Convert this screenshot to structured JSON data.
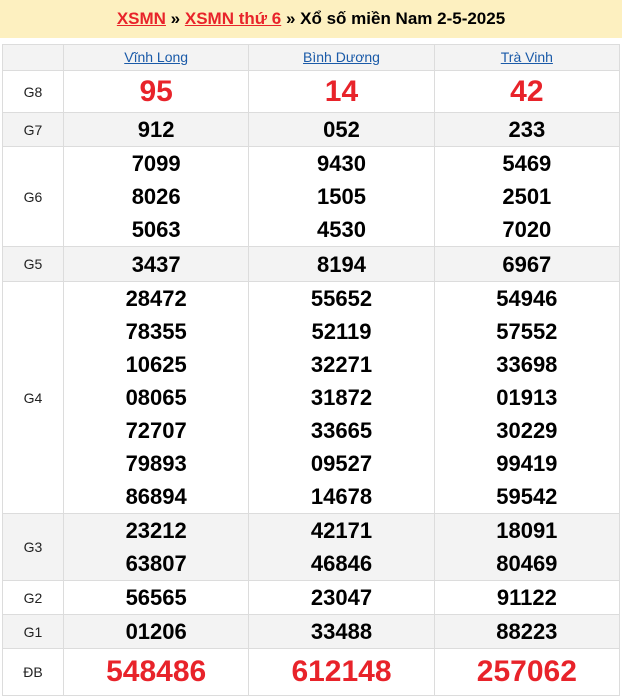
{
  "header": {
    "link1": "XSMN",
    "sep1": " » ",
    "link2": "XSMN thứ 6",
    "sep2": " » ",
    "title": "Xổ số miền Nam 2-5-2025"
  },
  "provinces": [
    "Vĩnh Long",
    "Bình Dương",
    "Trà Vinh"
  ],
  "prizes": [
    {
      "label": "G8",
      "values": [
        [
          "95"
        ],
        [
          "14"
        ],
        [
          "42"
        ]
      ]
    },
    {
      "label": "G7",
      "values": [
        [
          "912"
        ],
        [
          "052"
        ],
        [
          "233"
        ]
      ]
    },
    {
      "label": "G6",
      "values": [
        [
          "7099",
          "8026",
          "5063"
        ],
        [
          "9430",
          "1505",
          "4530"
        ],
        [
          "5469",
          "2501",
          "7020"
        ]
      ]
    },
    {
      "label": "G5",
      "values": [
        [
          "3437"
        ],
        [
          "8194"
        ],
        [
          "6967"
        ]
      ]
    },
    {
      "label": "G4",
      "values": [
        [
          "28472",
          "78355",
          "10625",
          "08065",
          "72707",
          "79893",
          "86894"
        ],
        [
          "55652",
          "52119",
          "32271",
          "31872",
          "33665",
          "09527",
          "14678"
        ],
        [
          "54946",
          "57552",
          "33698",
          "01913",
          "30229",
          "99419",
          "59542"
        ]
      ]
    },
    {
      "label": "G3",
      "values": [
        [
          "23212",
          "63807"
        ],
        [
          "42171",
          "46846"
        ],
        [
          "18091",
          "80469"
        ]
      ]
    },
    {
      "label": "G2",
      "values": [
        [
          "56565"
        ],
        [
          "23047"
        ],
        [
          "91122"
        ]
      ]
    },
    {
      "label": "G1",
      "values": [
        [
          "01206"
        ],
        [
          "33488"
        ],
        [
          "88223"
        ]
      ]
    },
    {
      "label": "ĐB",
      "values": [
        [
          "548486"
        ],
        [
          "612148"
        ],
        [
          "257062"
        ]
      ]
    }
  ],
  "colors": {
    "accent": "#e8232a",
    "link": "#1a5aa8",
    "header_bg": "#fdf0c0"
  }
}
